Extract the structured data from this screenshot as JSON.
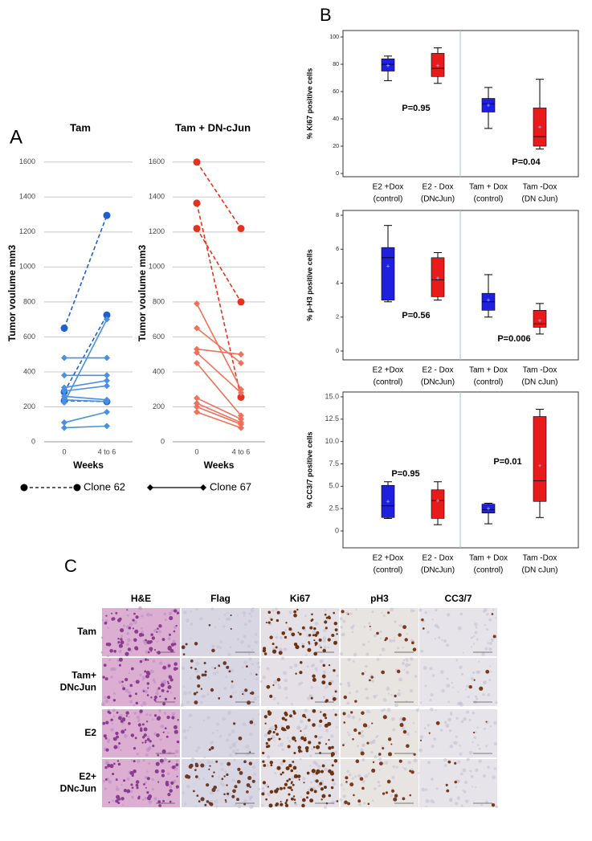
{
  "panel_labels": [
    "A",
    "B",
    "C"
  ],
  "chart_data": [
    {
      "type": "line",
      "title": "Tam",
      "ylabel": "Tumor voulume mm3",
      "xlabel": "Weeks",
      "categories": [
        "0",
        "4 to 6"
      ],
      "ylim": [
        0,
        1700
      ],
      "yticks": [
        0,
        200,
        400,
        600,
        800,
        1000,
        1200,
        1400,
        1600
      ],
      "grid": true,
      "series": [
        {
          "name": "Clone 62",
          "color": "#1f5fd1",
          "dashed": true,
          "marker": "circle",
          "values": [
            [
              650,
              1295
            ],
            [
              285,
              725
            ],
            [
              235,
              230
            ]
          ]
        },
        {
          "name": "Clone 67",
          "color": "#4a90e2",
          "dashed": false,
          "marker": "diamond",
          "values": [
            [
              480,
              480
            ],
            [
              380,
              380
            ],
            [
              310,
              350
            ],
            [
              290,
              320
            ],
            [
              260,
              240
            ],
            [
              240,
              230
            ],
            [
              225,
              700
            ],
            [
              110,
              170
            ],
            [
              80,
              90
            ]
          ]
        }
      ]
    },
    {
      "type": "line",
      "title": "Tam + DN-cJun",
      "ylabel": "Tumor voulume mm3",
      "xlabel": "Weeks",
      "categories": [
        "0",
        "4 to 6"
      ],
      "ylim": [
        0,
        1700
      ],
      "yticks": [
        0,
        200,
        400,
        600,
        800,
        1000,
        1200,
        1400,
        1600
      ],
      "grid": true,
      "series": [
        {
          "color": "#e8311a",
          "dashed": true,
          "marker": "circle",
          "values": [
            [
              1600,
              1220
            ],
            [
              1220,
              800
            ],
            [
              1365,
              255
            ]
          ]
        },
        {
          "color": "#f0705a",
          "dashed": false,
          "marker": "diamond",
          "values": [
            [
              790,
              300
            ],
            [
              650,
              450
            ],
            [
              530,
              500
            ],
            [
              510,
              280
            ],
            [
              450,
              150
            ],
            [
              250,
              130
            ],
            [
              220,
              110
            ],
            [
              200,
              100
            ],
            [
              170,
              80
            ]
          ]
        }
      ]
    },
    {
      "type": "box",
      "ylabel": "% Ki67 positive cells",
      "categories": [
        "E2 +Dox",
        "E2 - Dox",
        "Tam + Dox",
        "Tam -Dox"
      ],
      "subcategories": [
        "(control)",
        "(DNcJun)",
        "(control)",
        "(DN cJun)"
      ],
      "colors": [
        "#1f1fe0",
        "#e81a1a",
        "#1f1fe0",
        "#e81a1a"
      ],
      "ylim": [
        0,
        100
      ],
      "yticks": [
        0,
        20,
        40,
        60,
        80,
        100
      ],
      "boxes": [
        {
          "min": 68,
          "q1": 75,
          "median": 80,
          "q3": 84,
          "max": 86,
          "mean": 79
        },
        {
          "min": 66,
          "q1": 71,
          "median": 77,
          "q3": 88,
          "max": 92,
          "mean": 79
        },
        {
          "min": 33,
          "q1": 45,
          "median": 51,
          "q3": 55,
          "max": 63,
          "mean": 50
        },
        {
          "min": 18,
          "q1": 20,
          "median": 27,
          "q3": 48,
          "max": 69,
          "mean": 34
        }
      ],
      "annotations": [
        "P=0.95",
        "P=0.04"
      ]
    },
    {
      "type": "box",
      "ylabel": "% p-H3 positive cells",
      "categories": [
        "E2 +Dox",
        "E2 - Dox",
        "Tam + Dox",
        "Tam -Dox"
      ],
      "subcategories": [
        "(control)",
        "(DNcJun)",
        "(control)",
        "(DN cJun)"
      ],
      "colors": [
        "#1f1fe0",
        "#e81a1a",
        "#1f1fe0",
        "#e81a1a"
      ],
      "ylim": [
        0,
        8
      ],
      "yticks": [
        0,
        2,
        4,
        6,
        8
      ],
      "boxes": [
        {
          "min": 2.9,
          "q1": 3.0,
          "median": 5.5,
          "q3": 6.1,
          "max": 7.4,
          "mean": 5.0
        },
        {
          "min": 3.0,
          "q1": 3.2,
          "median": 4.2,
          "q3": 5.5,
          "max": 5.8,
          "mean": 4.3
        },
        {
          "min": 2.0,
          "q1": 2.4,
          "median": 2.9,
          "q3": 3.4,
          "max": 4.5,
          "mean": 3.0
        },
        {
          "min": 1.0,
          "q1": 1.4,
          "median": 1.6,
          "q3": 2.4,
          "max": 2.8,
          "mean": 1.8
        }
      ],
      "annotations": [
        "P=0.56",
        "P=0.006"
      ]
    },
    {
      "type": "box",
      "ylabel": "% CC3/7 positive cells",
      "categories": [
        "E2 +Dox",
        "E2 - Dox",
        "Tam + Dox",
        "Tam -Dox"
      ],
      "subcategories": [
        "(control)",
        "(DNcJun)",
        "(control)",
        "(DN cJun)"
      ],
      "colors": [
        "#1f1fe0",
        "#e81a1a",
        "#1f1fe0",
        "#e81a1a"
      ],
      "ylim": [
        0,
        15
      ],
      "yticks": [
        0,
        2.5,
        {
          "value": 5,
          "label": "5.0"
        },
        7.5,
        {
          "value": 10,
          "label": "10.0"
        },
        12.5,
        {
          "value": 15,
          "label": "15.0"
        }
      ],
      "boxes": [
        {
          "min": 1.4,
          "q1": 1.5,
          "median": 2.8,
          "q3": 5.1,
          "max": 5.5,
          "mean": 3.3
        },
        {
          "min": 0.7,
          "q1": 1.4,
          "median": 3.4,
          "q3": 4.6,
          "max": 5.5,
          "mean": 3.4
        },
        {
          "min": 0.8,
          "q1": 2.0,
          "median": 2.4,
          "q3": 3.0,
          "max": 3.1,
          "mean": 2.5
        },
        {
          "min": 1.5,
          "q1": 3.3,
          "median": 5.6,
          "q3": 12.8,
          "max": 13.6,
          "mean": 7.3
        }
      ],
      "annotations": [
        "P=0.95",
        "P=0.01"
      ]
    }
  ],
  "panel_c": {
    "columns": [
      "H&E",
      "Flag",
      "Ki67",
      "pH3",
      "CC3/7"
    ],
    "rows": [
      [
        "Tam"
      ],
      [
        "Tam+",
        "DNcJun"
      ],
      [
        "E2"
      ],
      [
        "E2+",
        "DNcJun"
      ]
    ]
  }
}
